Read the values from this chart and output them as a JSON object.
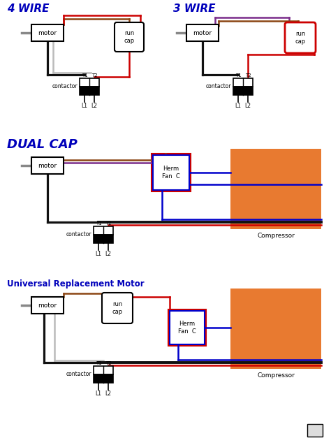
{
  "bg_color": "#ffffff",
  "title_4wire": "4 WIRE",
  "title_3wire": "3 WIRE",
  "title_dualcap": "DUAL CAP",
  "title_universal": "Universal Replacement Motor",
  "label_motor": "motor",
  "label_runcap": "run\ncap",
  "label_contactor": "contactor",
  "label_compressor": "Compressor",
  "label_hermfanc": "Herm\nFan  C",
  "color_red": "#cc0000",
  "color_black": "#111111",
  "color_white": "#bbbbbb",
  "color_brown": "#8B4513",
  "color_blue": "#0000cc",
  "color_purple": "#7B2D8B",
  "color_orange_box": "#E87A30",
  "color_title_blue": "#0000bb",
  "color_title_black": "#0000bb",
  "color_gray": "#888888"
}
